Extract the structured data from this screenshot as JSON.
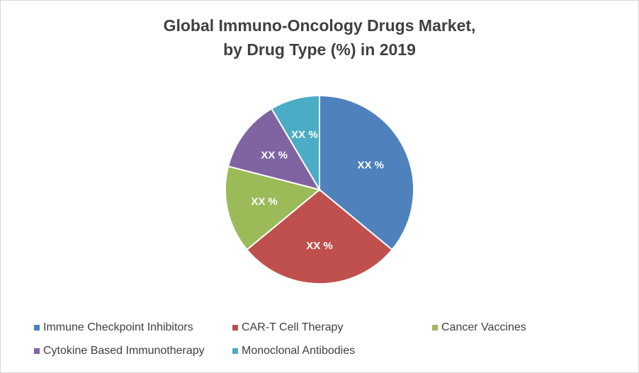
{
  "chart_data": {
    "type": "pie",
    "title": [
      "Global Immuno-Oncology Drugs Market,",
      "by Drug Type (%) in 2019"
    ],
    "categories": [
      "Immune Checkpoint Inhibitors",
      "CAR-T Cell Therapy",
      "Cancer Vaccines",
      "Cytokine Based Immunotherapy",
      "Monoclonal Antibodies"
    ],
    "values": [
      36,
      28,
      15,
      12.5,
      8.5
    ],
    "value_labels": [
      "XX %",
      "XX %",
      "XX %",
      "XX %",
      "XX %"
    ],
    "colors": [
      "#4f81bd",
      "#c0504d",
      "#9bbb59",
      "#8064a2",
      "#4bacc6"
    ],
    "legend": "bottom"
  }
}
